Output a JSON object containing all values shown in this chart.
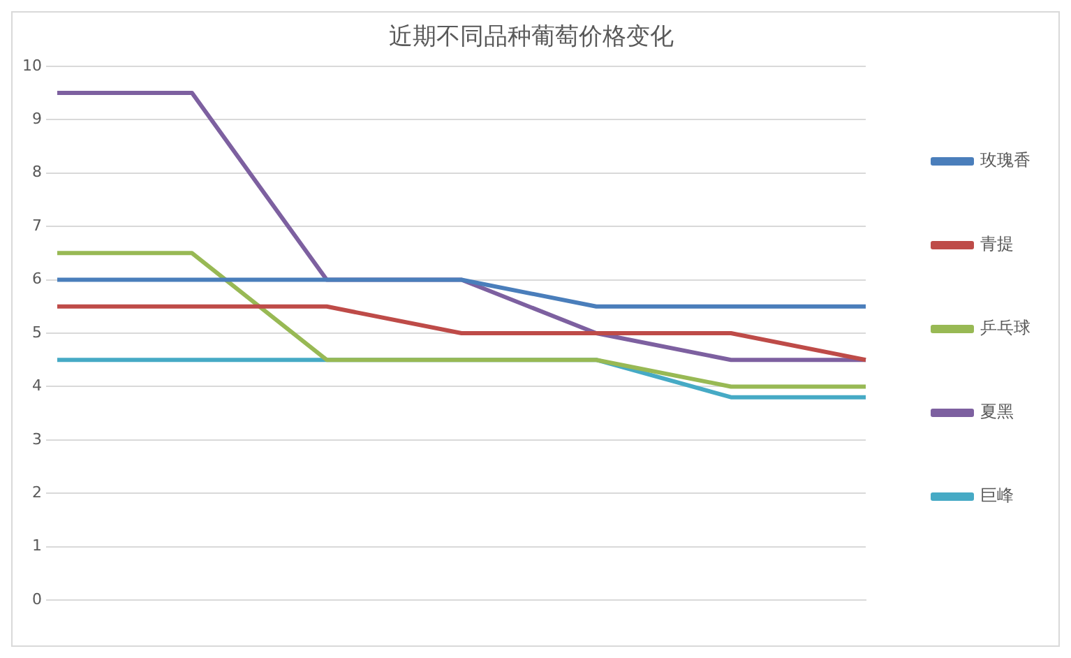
{
  "chart_data": {
    "type": "line",
    "title": "近期不同品种葡萄价格变化",
    "categories": [
      null,
      null,
      null,
      null,
      null,
      null,
      null
    ],
    "series": [
      {
        "name": "玫瑰香",
        "color": "#4a7ebb",
        "values": [
          6,
          6,
          6,
          6,
          5.5,
          5.5,
          5.5
        ]
      },
      {
        "name": "青提",
        "color": "#be4b48",
        "values": [
          5.5,
          5.5,
          5.5,
          5,
          5,
          5,
          4.5
        ]
      },
      {
        "name": "乒乓球",
        "color": "#98b954",
        "values": [
          6.5,
          6.5,
          4.5,
          4.5,
          4.5,
          4,
          4
        ]
      },
      {
        "name": "夏黑",
        "color": "#7d60a0",
        "values": [
          9.5,
          9.5,
          6,
          6,
          5,
          4.5,
          4.5
        ]
      },
      {
        "name": "巨峰",
        "color": "#46aac5",
        "values": [
          4.5,
          4.5,
          4.5,
          4.5,
          4.5,
          3.8,
          3.8
        ]
      }
    ],
    "ylim": [
      0,
      10
    ],
    "yticks": [
      0,
      1,
      2,
      3,
      4,
      5,
      6,
      7,
      8,
      9,
      10
    ],
    "grid": "y",
    "legend": "right",
    "marker": "none",
    "line_style": "solid"
  }
}
